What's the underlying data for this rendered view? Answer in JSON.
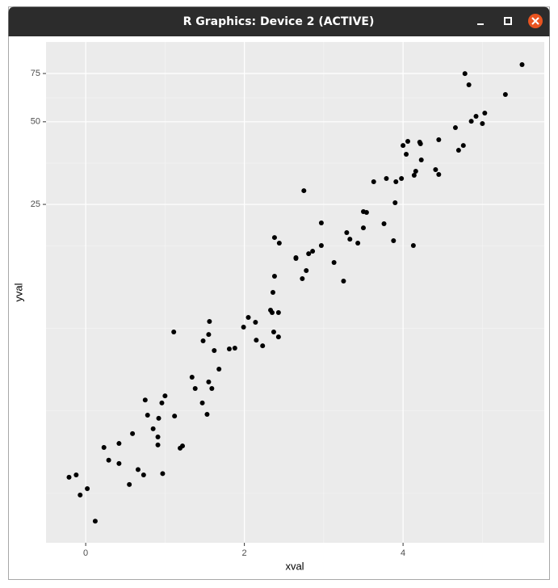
{
  "window": {
    "title": "R Graphics: Device 2 (ACTIVE)"
  },
  "chart_data": {
    "type": "scatter",
    "x_label": "xval",
    "y_label": "yval",
    "x": [
      -0.21,
      -0.12,
      -0.07,
      0.02,
      0.12,
      0.23,
      0.29,
      0.42,
      0.42,
      0.55,
      0.59,
      0.66,
      0.73,
      0.75,
      0.78,
      0.85,
      0.91,
      0.91,
      0.92,
      0.96,
      0.97,
      1.0,
      1.11,
      1.12,
      1.19,
      1.22,
      1.34,
      1.38,
      1.47,
      1.48,
      1.53,
      1.55,
      1.55,
      1.56,
      1.59,
      1.62,
      1.68,
      1.81,
      1.88,
      1.99,
      2.05,
      2.14,
      2.15,
      2.23,
      2.33,
      2.35,
      2.37,
      2.36,
      2.38,
      2.38,
      2.43,
      2.43,
      2.44,
      2.65,
      2.65,
      2.73,
      2.75,
      2.78,
      2.81,
      2.86,
      2.97,
      2.97,
      3.13,
      3.25,
      3.29,
      3.33,
      3.43,
      3.5,
      3.5,
      3.54,
      3.63,
      3.76,
      3.79,
      3.88,
      3.9,
      3.91,
      3.98,
      4.0,
      4.04,
      4.06,
      4.13,
      4.14,
      4.16,
      4.21,
      4.22,
      4.23,
      4.41,
      4.45,
      4.45,
      4.66,
      4.7,
      4.76,
      4.78,
      4.83,
      4.86,
      4.92,
      5.0,
      5.03,
      5.29,
      5.5
    ],
    "y": [
      2.53,
      2.58,
      2.18,
      2.3,
      1.75,
      3.25,
      2.92,
      3.36,
      2.84,
      2.38,
      3.65,
      2.7,
      2.58,
      4.84,
      4.26,
      3.8,
      3.32,
      3.55,
      4.15,
      4.72,
      2.61,
      5.01,
      8.57,
      4.23,
      3.23,
      3.29,
      5.86,
      5.33,
      4.72,
      7.95,
      4.29,
      5.63,
      8.39,
      9.36,
      5.33,
      7.33,
      6.27,
      7.43,
      7.48,
      8.92,
      9.68,
      9.29,
      8.0,
      7.63,
      10.29,
      10.08,
      8.57,
      11.94,
      13.68,
      18.93,
      10.08,
      8.22,
      18.06,
      15.88,
      15.99,
      13.4,
      28.05,
      14.34,
      16.52,
      16.87,
      21.39,
      17.69,
      15.35,
      13.13,
      19.72,
      18.67,
      18.06,
      20.53,
      23.52,
      23.36,
      30.23,
      21.25,
      31.06,
      18.43,
      25.34,
      30.23,
      31.06,
      41.0,
      38.06,
      42.42,
      17.69,
      31.91,
      33.01,
      42.14,
      41.57,
      36.3,
      33.46,
      32.13,
      43.0,
      47.6,
      39.37,
      41.0,
      74.96,
      68.2,
      50.25,
      52.35,
      49.25,
      53.8,
      62.9,
      80.8
    ],
    "color": "#000000",
    "xlim": [
      -0.5,
      5.78
    ],
    "ylim": [
      1.46,
      97.7
    ],
    "yscale": "log",
    "xticks": [
      0,
      2,
      4
    ],
    "yticks": [
      25,
      50,
      75
    ],
    "grid": true,
    "panel_color": "#ebebeb"
  }
}
